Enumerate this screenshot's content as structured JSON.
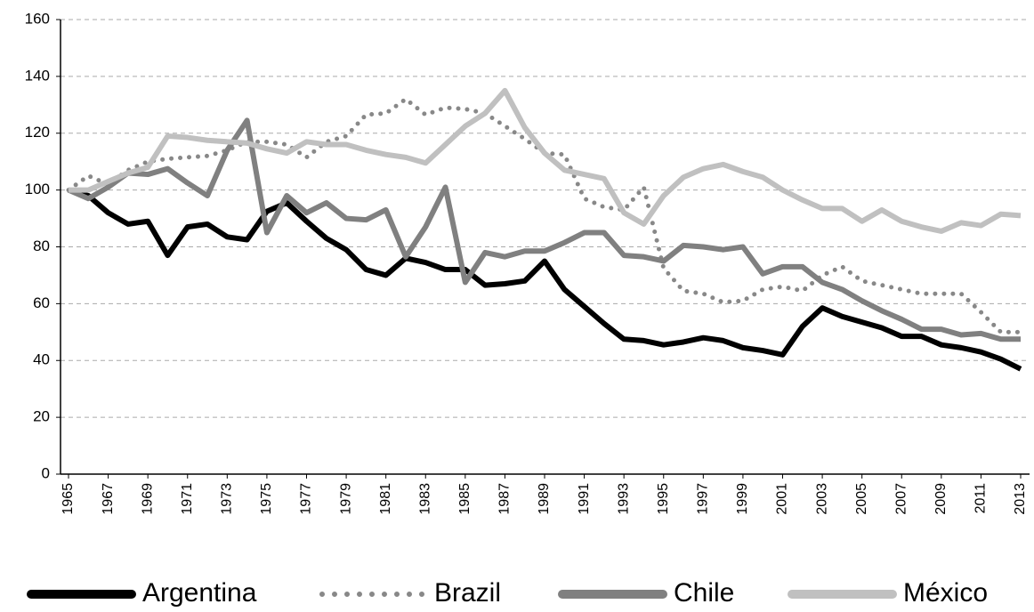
{
  "chart_data": {
    "type": "line",
    "x": [
      1965,
      1966,
      1967,
      1968,
      1969,
      1970,
      1971,
      1972,
      1973,
      1974,
      1975,
      1976,
      1977,
      1978,
      1979,
      1980,
      1981,
      1982,
      1983,
      1984,
      1985,
      1986,
      1987,
      1988,
      1989,
      1990,
      1991,
      1992,
      1993,
      1994,
      1995,
      1996,
      1997,
      1998,
      1999,
      2000,
      2001,
      2002,
      2003,
      2004,
      2005,
      2006,
      2007,
      2008,
      2009,
      2010,
      2011,
      2012,
      2013
    ],
    "xlim": [
      1965,
      2013
    ],
    "xticks": [
      1965,
      1967,
      1969,
      1971,
      1973,
      1975,
      1977,
      1979,
      1981,
      1983,
      1985,
      1987,
      1989,
      1991,
      1993,
      1995,
      1997,
      1999,
      2001,
      2003,
      2005,
      2007,
      2009,
      2011,
      2013
    ],
    "ylim": [
      0,
      160
    ],
    "yticks": [
      0,
      20,
      40,
      60,
      80,
      100,
      120,
      140,
      160
    ],
    "grid": true,
    "legend": "bottom",
    "series": [
      {
        "name": "Argentina",
        "color": "#000000",
        "dash": "solid",
        "values": [
          100,
          98,
          92,
          88,
          89,
          77,
          87,
          88,
          83.5,
          82.5,
          92.5,
          95.5,
          89,
          83,
          79,
          72,
          70,
          76,
          74.5,
          72,
          72,
          66.5,
          67,
          68,
          75,
          65,
          59,
          53,
          47.5,
          47,
          45.5,
          46.5,
          48,
          47,
          44.5,
          43.5,
          42,
          52,
          58.5,
          55.5,
          53.5,
          51.5,
          48.5,
          48.5,
          45.5,
          44.5,
          43,
          40.5,
          37
        ]
      },
      {
        "name": "Brazil",
        "color": "#888888",
        "dash": "dotted",
        "values": [
          100,
          105,
          102,
          107,
          110,
          111,
          111.5,
          112,
          114,
          117,
          117,
          116,
          111.5,
          117,
          119,
          126.5,
          127,
          132,
          126.5,
          129,
          128.5,
          127,
          122.5,
          118,
          113,
          112.5,
          97,
          94,
          93,
          101,
          72.5,
          64.5,
          63.5,
          60.5,
          61,
          65,
          66,
          64.5,
          70,
          73,
          68,
          66.5,
          65,
          63.5,
          63.5,
          63.5,
          57,
          50,
          50
        ]
      },
      {
        "name": "Chile",
        "color": "#808080",
        "dash": "solid",
        "values": [
          100,
          97,
          101,
          106,
          105.5,
          107.5,
          102.5,
          98,
          114,
          124.5,
          85,
          98,
          92,
          95.5,
          90,
          89.5,
          93,
          76.5,
          87,
          101,
          67.5,
          78,
          76.5,
          78.5,
          78.5,
          81.5,
          85,
          85,
          77,
          76.5,
          75,
          80.5,
          80,
          79,
          80,
          70.5,
          73,
          73,
          67.5,
          65,
          61,
          57.5,
          54.5,
          51,
          51,
          49,
          49.5,
          47.5,
          47.5
        ]
      },
      {
        "name": "México",
        "color": "#c0c0c0",
        "dash": "solid",
        "values": [
          100,
          100,
          103,
          106,
          108,
          119,
          118.5,
          117.5,
          117,
          116.5,
          114.5,
          113,
          117,
          116,
          116,
          114,
          112.5,
          111.5,
          109.5,
          116,
          122.5,
          127,
          135,
          122,
          113,
          107,
          105.5,
          104,
          92,
          88,
          98,
          104.5,
          107.5,
          109,
          106.5,
          104.5,
          100,
          96.5,
          93.5,
          93.5,
          89,
          93,
          89,
          87,
          85.5,
          88.5,
          87.5,
          91.5,
          91
        ]
      }
    ]
  }
}
